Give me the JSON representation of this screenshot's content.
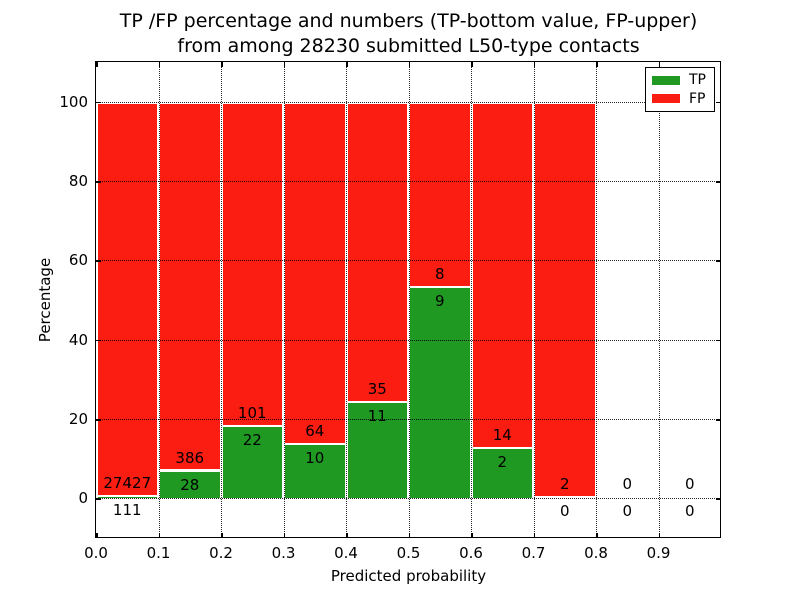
{
  "title": {
    "line1": "TP /FP percentage and numbers (TP-bottom value, FP-upper)",
    "line2": "from among 28230 submitted L50-type contacts"
  },
  "axes": {
    "xlabel": "Predicted probability",
    "ylabel": "Percentage",
    "x_tick_labels": [
      "0.0",
      "0.1",
      "0.2",
      "0.3",
      "0.4",
      "0.5",
      "0.6",
      "0.7",
      "0.8",
      "0.9"
    ],
    "y_tick_labels": [
      "0",
      "20",
      "40",
      "60",
      "80",
      "100"
    ],
    "y_tick_values": [
      0,
      20,
      40,
      60,
      80,
      100
    ],
    "x_tick_values": [
      0,
      0.1,
      0.2,
      0.3,
      0.4,
      0.5,
      0.6,
      0.7,
      0.8,
      0.9
    ]
  },
  "legend": {
    "position": "upper right",
    "entries": [
      {
        "label": "TP",
        "color_key": "tp"
      },
      {
        "label": "FP",
        "color_key": "fp"
      }
    ]
  },
  "colors": {
    "tp": "#1f9922",
    "fp": "#fb1d12",
    "bar_edge": "#ffffff",
    "text": "#000000",
    "grid": "#000000"
  },
  "chart_data": {
    "type": "bar",
    "stacked": true,
    "grid": "dotted",
    "legend_position": "upper right",
    "title": "TP /FP percentage and numbers (TP-bottom value, FP-upper) from among 28230 submitted L50-type contacts",
    "xlabel": "Predicted probability",
    "ylabel": "Percentage",
    "total_contacts": 28230,
    "xlim": [
      0,
      1.0
    ],
    "ylim": [
      -10,
      110
    ],
    "bins": [
      {
        "range": [
          0.0,
          0.1
        ],
        "tp": 111,
        "fp": 27427,
        "tp_percent": 0.4,
        "fp_percent": 99.6
      },
      {
        "range": [
          0.1,
          0.2
        ],
        "tp": 28,
        "fp": 386,
        "tp_percent": 6.8,
        "fp_percent": 93.2
      },
      {
        "range": [
          0.2,
          0.3
        ],
        "tp": 22,
        "fp": 101,
        "tp_percent": 17.9,
        "fp_percent": 82.1
      },
      {
        "range": [
          0.3,
          0.4
        ],
        "tp": 10,
        "fp": 64,
        "tp_percent": 13.5,
        "fp_percent": 86.5
      },
      {
        "range": [
          0.4,
          0.5
        ],
        "tp": 11,
        "fp": 35,
        "tp_percent": 23.9,
        "fp_percent": 76.1
      },
      {
        "range": [
          0.5,
          0.6
        ],
        "tp": 9,
        "fp": 8,
        "tp_percent": 52.9,
        "fp_percent": 47.1
      },
      {
        "range": [
          0.6,
          0.7
        ],
        "tp": 2,
        "fp": 14,
        "tp_percent": 12.5,
        "fp_percent": 87.5
      },
      {
        "range": [
          0.7,
          0.8
        ],
        "tp": 0,
        "fp": 2,
        "tp_percent": 0.0,
        "fp_percent": 100.0
      },
      {
        "range": [
          0.8,
          0.9
        ],
        "tp": 0,
        "fp": 0,
        "tp_percent": null,
        "fp_percent": null
      },
      {
        "range": [
          0.9,
          1.0
        ],
        "tp": 0,
        "fp": 0,
        "tp_percent": null,
        "fp_percent": null
      }
    ]
  }
}
